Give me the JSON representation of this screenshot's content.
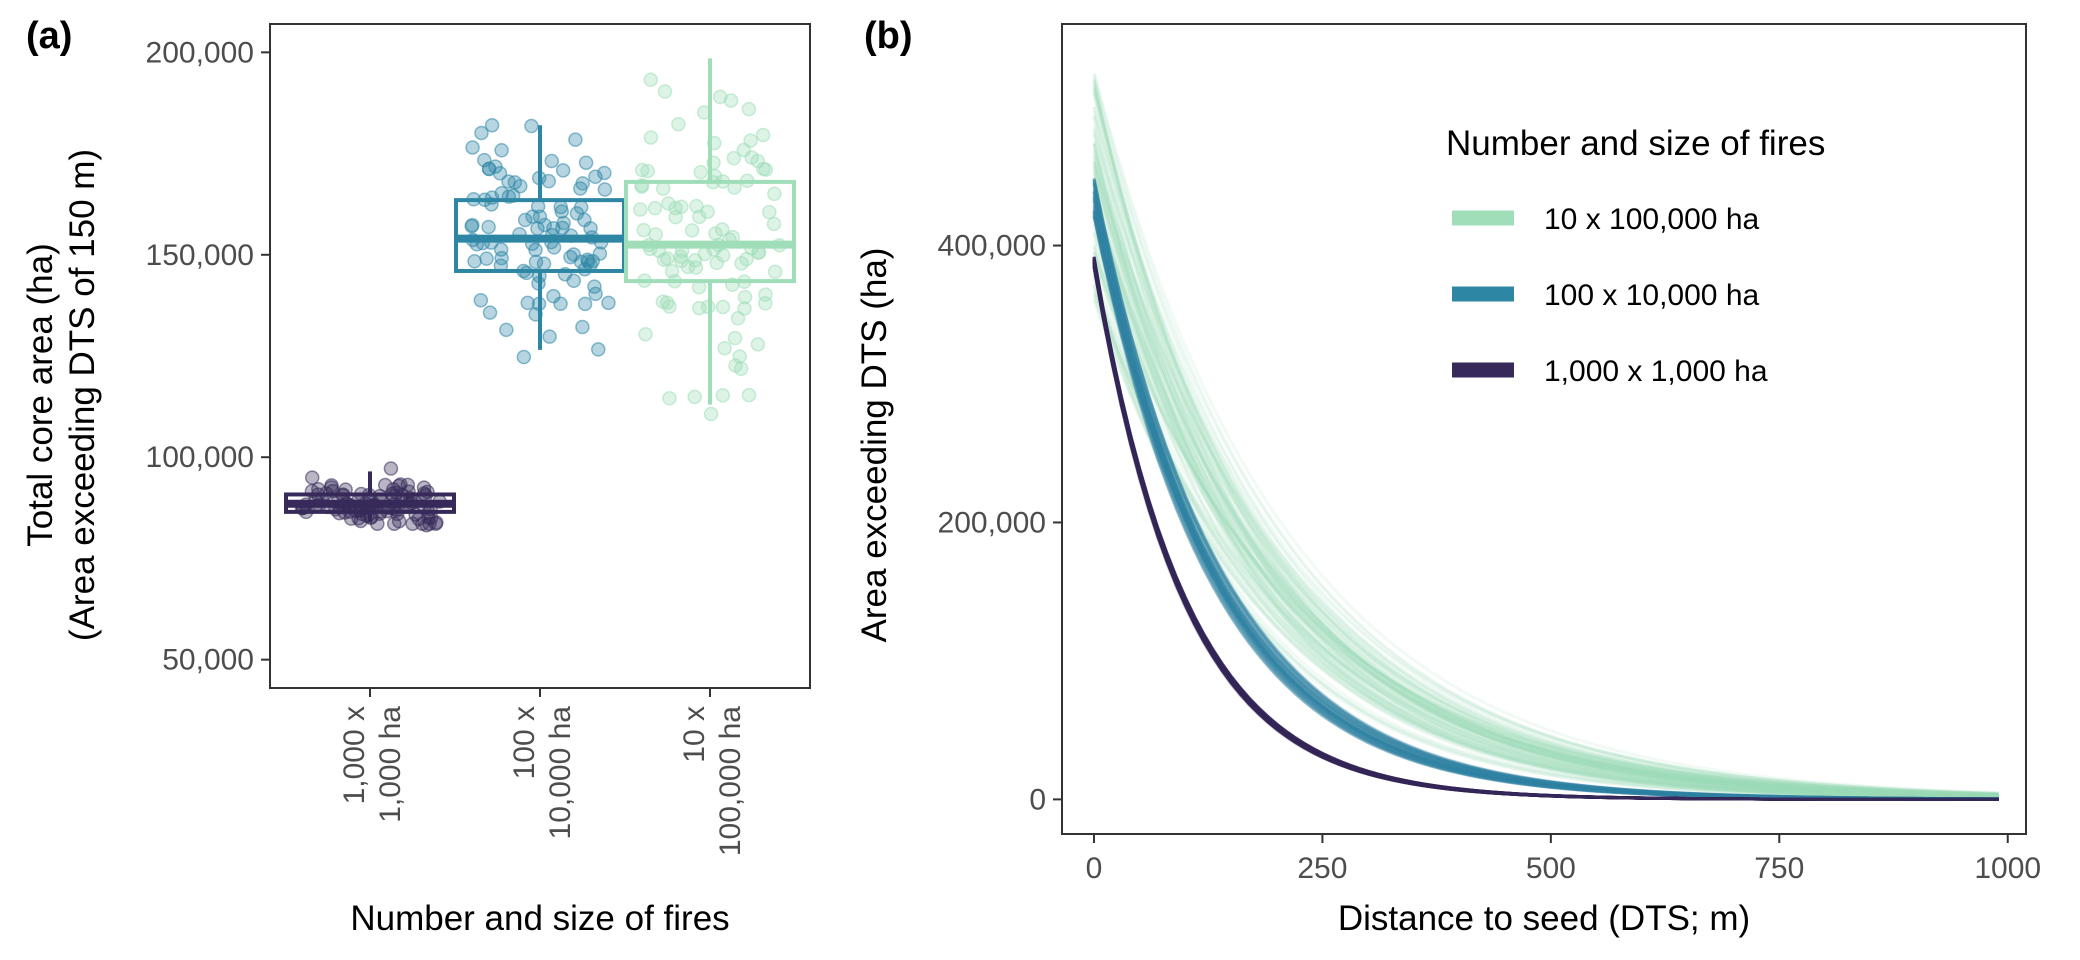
{
  "colors": {
    "fires_10_x_100000": "#9fdeb8",
    "fires_100_x_10000": "#2e86a5",
    "fires_1000_x_1000": "#372a5a",
    "axis": "#333333",
    "tick_text": "#4d4d4d"
  },
  "chart_data": [
    {
      "panel": "(a)",
      "type": "box",
      "xlabel": "Number and size of fires",
      "ylabel_lines": [
        "Total core area (ha)",
        "(Area exceeding DTS of 150 m)"
      ],
      "ylim": [
        43000,
        207000
      ],
      "yticks": [
        50000,
        100000,
        150000,
        200000
      ],
      "ytick_labels": [
        "50,000",
        "100,000",
        "150,000",
        "200,000"
      ],
      "grid": false,
      "points_per_group": 100,
      "categories": [
        {
          "label_lines": [
            "1,000 x",
            "1,000 ha"
          ],
          "color_key": "fires_1000_x_1000",
          "min": 84000,
          "q1": 86500,
          "median": 88500,
          "q3": 90800,
          "max": 96500,
          "outliers": [
            83200,
            97200
          ]
        },
        {
          "label_lines": [
            "100 x",
            "10,000 ha"
          ],
          "color_key": "fires_100_x_10000",
          "min": 126500,
          "q1": 146000,
          "median": 154000,
          "q3": 163500,
          "max": 182000,
          "outliers": []
        },
        {
          "label_lines": [
            "10 x",
            "100,000 ha"
          ],
          "color_key": "fires_10_x_100000",
          "min": 113000,
          "q1": 143500,
          "median": 152500,
          "q3": 168000,
          "max": 198500,
          "outliers": []
        }
      ]
    },
    {
      "panel": "(b)",
      "type": "line",
      "xlabel": "Distance to seed (DTS; m)",
      "ylabel": "Area exceeding DTS (ha)",
      "xlim": [
        -35,
        1020
      ],
      "ylim": [
        -25000,
        560000
      ],
      "xticks": [
        0,
        250,
        500,
        750,
        1000
      ],
      "xtick_labels": [
        "0",
        "250",
        "500",
        "750",
        "1000"
      ],
      "yticks": [
        0,
        200000,
        400000
      ],
      "ytick_labels": [
        "0",
        "200,000",
        "400,000"
      ],
      "grid": false,
      "x_max": 990,
      "legend": {
        "title": "Number and size of fires",
        "placement": "top-right",
        "entries": [
          {
            "label": "10 x 100,000 ha",
            "color_key": "fires_10_x_100000"
          },
          {
            "label": "100 x 10,000 ha",
            "color_key": "fires_100_x_10000"
          },
          {
            "label": "1,000 x 1,000 ha",
            "color_key": "fires_1000_x_1000"
          }
        ]
      },
      "series": [
        {
          "color_key": "fires_10_x_100000",
          "replicates": 100,
          "start_range": [
            360000,
            530000
          ],
          "decay_range": [
            160,
            215
          ]
        },
        {
          "color_key": "fires_100_x_10000",
          "replicates": 100,
          "start_range": [
            420000,
            450000
          ],
          "decay_range": [
            128,
            142
          ]
        },
        {
          "color_key": "fires_1000_x_1000",
          "replicates": 100,
          "start_range": [
            384000,
            392000
          ],
          "decay_range": [
            98,
            102
          ]
        }
      ]
    }
  ]
}
